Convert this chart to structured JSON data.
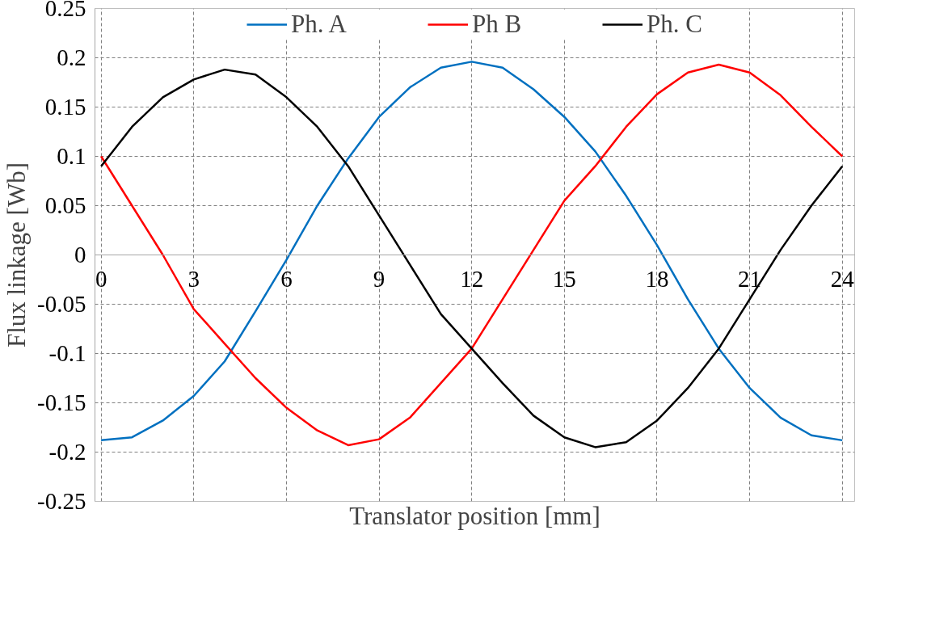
{
  "chart_data": {
    "type": "line",
    "xlabel": "Translator position [mm]",
    "ylabel": "Flux linkage [Wb]",
    "x": [
      0,
      1,
      2,
      3,
      4,
      5,
      6,
      7,
      8,
      9,
      10,
      11,
      12,
      13,
      14,
      15,
      16,
      17,
      18,
      19,
      20,
      21,
      22,
      23,
      24
    ],
    "series": [
      {
        "name": "Ph. A",
        "color": "#0070c0",
        "values": [
          -0.188,
          -0.185,
          -0.168,
          -0.143,
          -0.108,
          -0.057,
          -0.005,
          0.05,
          0.098,
          0.14,
          0.17,
          0.19,
          0.196,
          0.19,
          0.168,
          0.14,
          0.105,
          0.06,
          0.01,
          -0.045,
          -0.095,
          -0.135,
          -0.165,
          -0.183,
          -0.188
        ]
      },
      {
        "name": "Ph B",
        "color": "#ff0000",
        "values": [
          0.1,
          0.05,
          0.0,
          -0.055,
          -0.09,
          -0.125,
          -0.155,
          -0.178,
          -0.193,
          -0.187,
          -0.165,
          -0.13,
          -0.095,
          -0.045,
          0.005,
          0.055,
          0.09,
          0.13,
          0.163,
          0.185,
          0.193,
          0.185,
          0.162,
          0.13,
          0.1
        ]
      },
      {
        "name": "Ph. C",
        "color": "#000000",
        "values": [
          0.09,
          0.13,
          0.16,
          0.178,
          0.188,
          0.183,
          0.16,
          0.13,
          0.09,
          0.04,
          -0.01,
          -0.06,
          -0.095,
          -0.13,
          -0.163,
          -0.185,
          -0.195,
          -0.19,
          -0.168,
          -0.135,
          -0.095,
          -0.045,
          0.005,
          0.05,
          0.09
        ]
      }
    ],
    "xlim": [
      -0.2,
      24.4
    ],
    "xticks": [
      0,
      3,
      6,
      9,
      12,
      15,
      18,
      21,
      24
    ],
    "ylim": [
      -0.25,
      0.25
    ],
    "yticks": [
      -0.25,
      -0.2,
      -0.15,
      -0.1,
      -0.05,
      0,
      0.05,
      0.1,
      0.15,
      0.2,
      0.25
    ],
    "grid": true,
    "legend": "top",
    "line_style": "solid",
    "marker": "none"
  }
}
